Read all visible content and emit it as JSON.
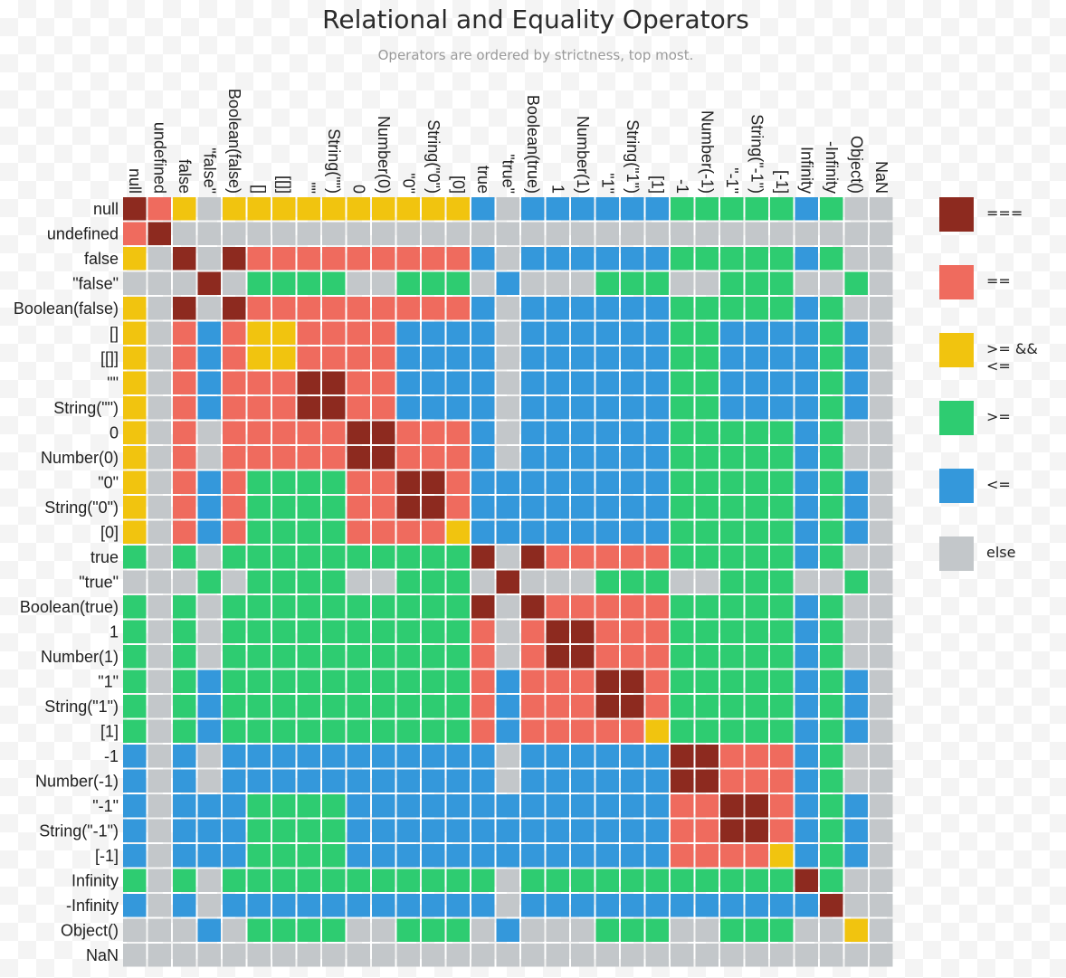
{
  "title": "Relational and Equality Operators",
  "subtitle": "Operators are ordered by strictness, top most.",
  "colors": {
    "strict": "#8d2a1f",
    "loose": "#ef6b5e",
    "ge_and_le": "#f1c40f",
    "ge": "#2ecc71",
    "le": "#3498db",
    "else": "#c3c7ca"
  },
  "legend": [
    {
      "code": "S",
      "label": "===",
      "color": "#8d2a1f"
    },
    {
      "code": "E",
      "label": "==",
      "color": "#ef6b5e"
    },
    {
      "code": "Y",
      "label": ">= && <=",
      "color": "#f1c40f"
    },
    {
      "code": "G",
      "label": ">=",
      "color": "#2ecc71"
    },
    {
      "code": "B",
      "label": "<=",
      "color": "#3498db"
    },
    {
      "code": "X",
      "label": "else",
      "color": "#c3c7ca"
    }
  ],
  "chart_data": {
    "type": "heatmap",
    "title": "Relational and Equality Operators",
    "subtitle": "Operators are ordered by strictness, top most.",
    "labels": [
      "null",
      "undefined",
      "false",
      "\"false\"",
      "Boolean(false)",
      "[]",
      "[[]]",
      "\"\"",
      "String(\"\")",
      "0",
      "Number(0)",
      "\"0\"",
      "String(\"0\")",
      "[0]",
      "true",
      "\"true\"",
      "Boolean(true)",
      "1",
      "Number(1)",
      "\"1\"",
      "String(\"1\")",
      "[1]",
      "-1",
      "Number(-1)",
      "\"-1\"",
      "String(\"-1\")",
      "[-1]",
      "Infinity",
      "-Infinity",
      "Object()",
      "NaN"
    ],
    "legend_codes": {
      "S": "===",
      "E": "==",
      "Y": ">= && <=",
      "G": ">=",
      "B": "<=",
      "X": "else"
    },
    "rows": [
      "SEYXYYYYYYYYYYBXBBBBBBGGGGGBGXX",
      "ESXXXXXXXXXXXXXXXXXXXXXXXXXXXXX",
      "YXSXSEEEEEEEEEBXBBBBBBGGGGGBGXX",
      "XXXSXGGGGXXGGGXBXXXGGGXXGGGXXGX",
      "YXSXSEEEEEEEEEBXBBBBBBGGGGGBGXX",
      "YXEBEYYEEEEBBBBXBBBBBBGGBBBBGBX",
      "YXEBEYYEEEEBBBBXBBBBBBGGBBBBGBX",
      "YXEBEEESSEEBBBBXBBBBBBGGBBBBGBX",
      "YXEBEEESSEEBBBBXBBBBBBGGBBBBGBX",
      "YXEXEEEEESSEEEBXBBBBBBGGGGGBGXX",
      "YXEXEEEEESSEEEBXBBBBBBGGGGGBGXX",
      "YXEBEGGGGEESSEBBBBBBBBGGGGGBGBX",
      "YXEBEGGGGEESSEBBBBBBBBGGGGGBGBX",
      "YXEBEGGGGEEEEYBBBBBBBBGGGGGBGBX",
      "GXGXGGGGGGGGGGSXSEEEEEGGGGGBGXX",
      "XXXGXGGGGXXGGGXSXXXGGGXXGGGXXGX",
      "GXGXGGGGGGGGGGSXSEEEEEGGGGGBGXX",
      "GXGXGGGGGGGGGGEXESSEEEGGGGGBGXX",
      "GXGXGGGGGGGGGGEXESSEEEGGGGGBGXX",
      "GXGBGGGGGGGGGGEBEEESSEGGGGGBGBX",
      "GXGBGGGGGGGGGGEBEEESSEGGGGGBGBX",
      "GXGBGGGGGGGGGGEBEEEEEYGGGGGBGBX",
      "BXBXBBBBBBBBBBBXBBBBBBSSEEEBGXX",
      "BXBXBBBBBBBBBBBXBBBBBBSSEEEBGXX",
      "BXBBBGGGGBBBBBBBBBBBBBEESSEBGBX",
      "BXBBBGGGGBBBBBBBBBBBBBEESSEBGBX",
      "BXBBBGGGGBBBBBBBBBBBBBEEEEYBGBX",
      "GXGXGGGGGGGGGGGXGGGGGGGGGGGSGXX",
      "BXBXBBBBBBBBBBBXBBBBBBBBBBBBSXX",
      "XXXBXGGGGXXGGGXBXXXGGGXXGGGXXYX",
      "XXXXXXXXXXXXXXXXXXXXXXXXXXXXXXX"
    ]
  }
}
